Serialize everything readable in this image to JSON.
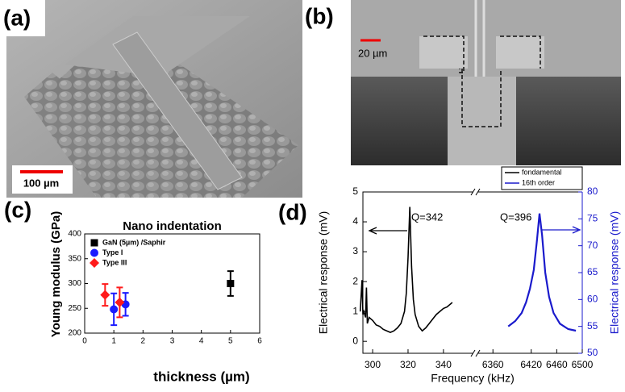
{
  "panels": {
    "a": "(a)",
    "b": "(b)",
    "c": "(c)",
    "d": "(d)"
  },
  "images": {
    "a_scale": "100 µm",
    "b_scale": "20 µm"
  },
  "chart_data": [
    {
      "type": "scatter",
      "title": "Nano indentation",
      "xlabel": "thickness (µm)",
      "ylabel": "Young modulus (GPa)",
      "xlim": [
        0,
        6
      ],
      "xticks": [
        0,
        1,
        2,
        3,
        4,
        5,
        6
      ],
      "ylim": [
        200,
        400
      ],
      "yticks": [
        200,
        250,
        300,
        350,
        400
      ],
      "legend": "upper left",
      "series": [
        {
          "name": "GaN (5µm) /Saphir",
          "color": "#000000",
          "marker": "square",
          "x": [
            5
          ],
          "values": [
            300
          ],
          "errors": [
            25
          ]
        },
        {
          "name": "Type I",
          "color": "#1a1aff",
          "marker": "circle",
          "x": [
            1.0,
            1.4
          ],
          "values": [
            248,
            258
          ],
          "errors": [
            32,
            23
          ]
        },
        {
          "name": "Type III",
          "color": "#ff1a1a",
          "marker": "diamond",
          "x": [
            0.7,
            1.2
          ],
          "values": [
            277,
            262
          ],
          "errors": [
            22,
            30
          ]
        }
      ]
    },
    {
      "type": "line",
      "xlabel": "Frequency (kHz)",
      "ylabel": "Electrical response (mV)",
      "y2label": "Electrical response (mV)",
      "xlim_segments": [
        [
          294.5,
          356
        ],
        [
          6342,
          6500
        ]
      ],
      "xticks": [
        300,
        320,
        340,
        6360,
        6420,
        6460,
        6500
      ],
      "ylim": [
        -0.4,
        5
      ],
      "yticks": [
        0,
        1,
        2,
        3,
        4,
        5
      ],
      "y2lim": [
        50,
        80
      ],
      "y2ticks": [
        50,
        55,
        60,
        65,
        70,
        75,
        80
      ],
      "legend": "above right",
      "annotations": [
        "Q=342",
        "Q=396"
      ],
      "series": [
        {
          "name": "fondamental",
          "color": "#000000",
          "x": [
            293,
            294,
            294.5,
            295,
            296,
            296.5,
            297,
            298,
            300,
            302,
            304,
            306,
            308,
            310,
            312,
            314,
            316,
            318,
            319,
            320,
            321,
            322,
            323,
            324,
            326,
            328,
            330,
            332,
            334,
            336,
            338,
            340,
            342,
            344,
            345
          ],
          "values": [
            1.0,
            2.05,
            0.9,
            1.0,
            0.8,
            1.8,
            0.6,
            0.8,
            0.7,
            0.55,
            0.5,
            0.4,
            0.35,
            0.3,
            0.35,
            0.45,
            0.6,
            1.0,
            1.6,
            2.8,
            4.5,
            2.5,
            1.4,
            0.9,
            0.5,
            0.35,
            0.45,
            0.6,
            0.75,
            0.9,
            1.0,
            1.1,
            1.15,
            1.25,
            1.3
          ]
        },
        {
          "name": "16th order",
          "color": "#1a1acc",
          "axis": "y2",
          "x": [
            6384,
            6395,
            6405,
            6412,
            6418,
            6424,
            6429,
            6433,
            6437,
            6442,
            6448,
            6455,
            6465,
            6478,
            6490
          ],
          "values": [
            55,
            56,
            57.5,
            59.5,
            62,
            65.5,
            71,
            76,
            72,
            65,
            60.5,
            57.5,
            55.5,
            54.5,
            54.2
          ]
        }
      ]
    }
  ]
}
